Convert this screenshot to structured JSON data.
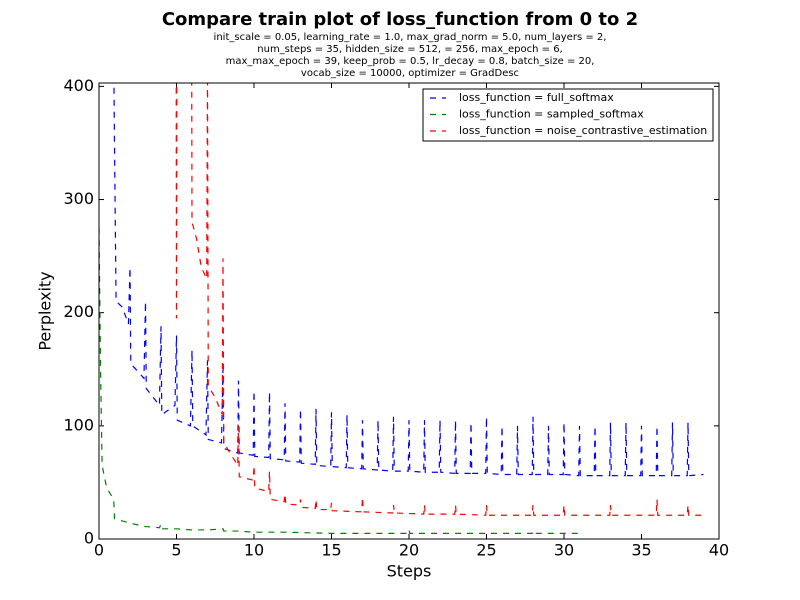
{
  "chart_data": {
    "type": "line",
    "title": "Compare train plot of loss_function from 0 to 2",
    "subtitle": [
      "init_scale = 0.05, learning_rate = 1.0, max_grad_norm = 5.0, num_layers = 2,",
      "num_steps = 35, hidden_size = 512,   = 256, max_epoch = 6,",
      "max_max_epoch = 39, keep_prob = 0.5, lr_decay = 0.8, batch_size = 20,",
      "vocab_size = 10000, optimizer = GradDesc"
    ],
    "x_label": "Steps",
    "y_label": "Perplexity",
    "xlim": [
      0,
      40
    ],
    "ylim": [
      0,
      403
    ],
    "xticks": [
      0,
      5,
      10,
      15,
      20,
      25,
      30,
      35,
      40
    ],
    "yticks": [
      0,
      100,
      200,
      300,
      400
    ],
    "legend": "upper right",
    "dash": true,
    "series": [
      {
        "name": "loss_function = full_softmax",
        "color": "#0000ff",
        "x": [
          0.95,
          1.1,
          1.5,
          1.9,
          2.0,
          2.05,
          2.9,
          3.0,
          3.05,
          3.9,
          4.0,
          4.05,
          4.9,
          5.0,
          5.05,
          5.9,
          6.0,
          6.05,
          6.9,
          7.0,
          7.05,
          7.9,
          8.0,
          8.05,
          8.95,
          9.0,
          9.05,
          9.95,
          10.0,
          10.05,
          10.95,
          11.0,
          11.05,
          11.95,
          12.0,
          12.05,
          12.95,
          13.0,
          13.05,
          13.95,
          14.0,
          14.05,
          14.95,
          15.0,
          15.05,
          15.95,
          16.0,
          16.05,
          16.95,
          17.0,
          17.05,
          17.95,
          18.0,
          18.05,
          18.95,
          19.0,
          19.05,
          19.95,
          20.0,
          20.05,
          20.95,
          21.0,
          21.05,
          21.95,
          22.0,
          22.05,
          22.95,
          23.0,
          23.05,
          23.95,
          24.0,
          24.05,
          24.95,
          25.0,
          25.05,
          25.95,
          26.0,
          26.05,
          26.95,
          27.0,
          27.05,
          27.95,
          28.0,
          28.05,
          28.95,
          29.0,
          29.05,
          29.95,
          30.0,
          30.05,
          30.95,
          31.0,
          31.05,
          31.95,
          32.0,
          32.05,
          32.95,
          33.0,
          33.05,
          33.95,
          34.0,
          34.05,
          34.95,
          35.0,
          35.05,
          35.95,
          36.0,
          36.05,
          36.95,
          37.0,
          37.05,
          37.95,
          38.0,
          38.05,
          39.0
        ],
        "values": [
          420,
          210,
          205,
          190,
          240,
          155,
          142,
          210,
          133,
          118,
          188,
          110,
          118,
          180,
          105,
          100,
          167,
          100,
          92,
          158,
          88,
          85,
          150,
          80,
          76,
          140,
          76,
          74,
          131,
          73,
          72,
          130,
          71,
          70,
          120,
          69,
          68,
          115,
          67,
          66,
          115,
          65,
          64,
          112,
          64,
          63,
          110,
          63,
          62,
          105,
          62,
          61,
          105,
          61,
          60,
          108,
          60,
          60,
          105,
          60,
          59,
          105,
          59,
          59,
          105,
          59,
          58,
          105,
          58,
          58,
          103,
          58,
          58,
          108,
          58,
          57,
          100,
          57,
          57,
          100,
          57,
          57,
          108,
          57,
          57,
          100,
          57,
          57,
          103,
          57,
          56,
          100,
          56,
          56,
          100,
          56,
          56,
          103,
          56,
          56,
          103,
          56,
          56,
          100,
          56,
          56,
          100,
          56,
          56,
          103,
          56,
          56,
          103,
          56,
          57
        ]
      },
      {
        "name": "loss_function = sampled_softmax",
        "color": "#008000",
        "x": [
          0.0,
          0.1,
          0.2,
          0.5,
          0.95,
          1.0,
          2.0,
          3.0,
          3.9,
          4.0,
          4.05,
          5.0,
          6.0,
          7.0,
          8.0,
          8.05,
          9.0,
          10.0,
          12.0,
          15.0,
          19.95,
          20.0,
          20.05,
          25.0,
          27.95,
          28.0,
          28.05,
          31.0
        ],
        "values": [
          275,
          150,
          65,
          45,
          35,
          18,
          14,
          11,
          10,
          13,
          9,
          9,
          8,
          8,
          9,
          7,
          7,
          6,
          6,
          5,
          5,
          8,
          5,
          5,
          5,
          7,
          5,
          5
        ]
      },
      {
        "name": "loss_function = noise_contrastive_estimation",
        "color": "#ff0000",
        "x": [
          4.98,
          5.0,
          5.02,
          5.98,
          6.0,
          6.3,
          6.6,
          6.95,
          7.0,
          7.05,
          7.5,
          7.95,
          8.0,
          8.05,
          8.5,
          8.95,
          9.0,
          9.05,
          9.95,
          10.0,
          10.05,
          10.95,
          11.0,
          11.05,
          11.95,
          12.0,
          12.05,
          12.95,
          13.0,
          13.05,
          13.95,
          14.0,
          14.05,
          14.95,
          15.0,
          15.05,
          16.95,
          17.0,
          17.05,
          18.95,
          19.0,
          19.05,
          20.95,
          21.0,
          21.05,
          22.95,
          23.0,
          23.05,
          24.95,
          25.0,
          25.05,
          27.95,
          28.0,
          28.05,
          29.95,
          30.0,
          30.05,
          32.95,
          33.0,
          33.05,
          35.95,
          36.0,
          36.05,
          37.95,
          38.0,
          38.05,
          39.0
        ],
        "values": [
          420,
          195,
          420,
          420,
          280,
          265,
          240,
          230,
          420,
          135,
          125,
          110,
          248,
          85,
          75,
          65,
          100,
          55,
          52,
          65,
          45,
          42,
          60,
          35,
          33,
          40,
          31,
          30,
          35,
          28,
          27,
          35,
          26,
          26,
          32,
          25,
          24,
          37,
          24,
          23,
          30,
          23,
          22,
          30,
          22,
          22,
          30,
          22,
          21,
          30,
          21,
          21,
          30,
          21,
          21,
          30,
          21,
          21,
          30,
          21,
          21,
          35,
          21,
          21,
          30,
          21,
          21
        ]
      }
    ]
  }
}
